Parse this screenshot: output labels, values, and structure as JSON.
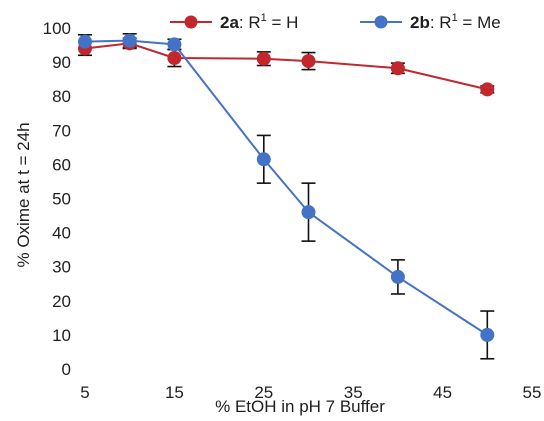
{
  "chart_data": {
    "type": "line",
    "title": "",
    "xlabel": "% EtOH in pH 7 Buffer",
    "ylabel": "% Oxime at t = 24h",
    "xlim": [
      5,
      55
    ],
    "ylim": [
      0,
      100
    ],
    "x_ticks": [
      "5",
      "15",
      "25",
      "35",
      "45",
      "55"
    ],
    "y_ticks": [
      "0",
      "10",
      "20",
      "30",
      "40",
      "50",
      "60",
      "70",
      "80",
      "90",
      "100"
    ],
    "legend_position": "top",
    "series": [
      {
        "name": "2a: R1 = H",
        "legend": {
          "compound": "2a",
          "suffix": ": R",
          "superscript": "1",
          "equals_value": " = H"
        },
        "color": "#c1272d",
        "x": [
          5,
          10,
          15,
          25,
          30,
          40,
          50
        ],
        "y": [
          94,
          95.5,
          91.2,
          91,
          90.3,
          88.2,
          82
        ],
        "error": [
          2,
          1.5,
          2.5,
          2,
          2.5,
          1.5,
          1
        ]
      },
      {
        "name": "2b: R1 = Me",
        "legend": {
          "compound": "2b",
          "suffix": ": R",
          "superscript": "1",
          "equals_value": " = Me"
        },
        "color": "#4472c4",
        "x": [
          5,
          10,
          15,
          25,
          30,
          40,
          50
        ],
        "y": [
          96,
          96.3,
          95.2,
          61.5,
          46,
          27,
          10
        ],
        "error": [
          2,
          2,
          1.5,
          7,
          8.5,
          5,
          7
        ]
      }
    ]
  }
}
